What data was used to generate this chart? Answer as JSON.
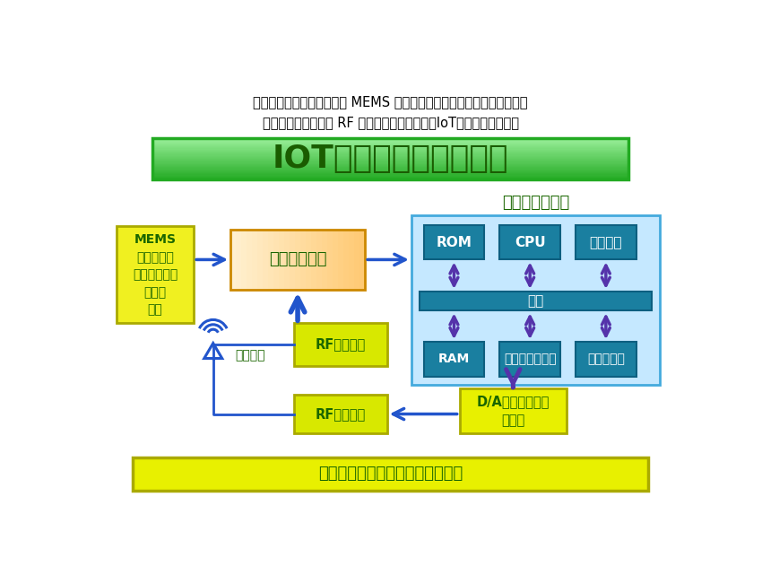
{
  "title_text": "IOTセンサーの基本回路",
  "header_text": "入力にセンサー（図左上の MEMS センサーなど黄色い枠の中）をつけ、\n送信機（真ん中下の RF 送信回路）をつけるとIoTデバイスになる。",
  "bottom_label": "パワーマネジメント（電源回路）",
  "mems_label": "MEMS\nセンサー、\n光センサー、\nアンプ\nなど",
  "sensor_hub_label": "センサーハブ",
  "rf_rx_label": "RF受信回路",
  "rf_tx_label": "RF送信回路",
  "da_label": "D/Aコンバータ、\nアンプ",
  "antenna_label": "アンテナ",
  "embedded_label": "組込みシステム",
  "rom_label": "ROM",
  "cpu_label": "CPU",
  "peri_label": "周辺回路",
  "bus_label": "バス",
  "ram_label": "RAM",
  "if_label": "インタフェース",
  "storage_label": "ストレージ",
  "title_text_color": "#1a5c00",
  "teal_box_color": "#1a7fa0",
  "teal_box_border": "#0d5f80",
  "arrow_blue": "#2255cc",
  "arrow_purple": "#5533aa",
  "green_text_color": "#1a6600"
}
